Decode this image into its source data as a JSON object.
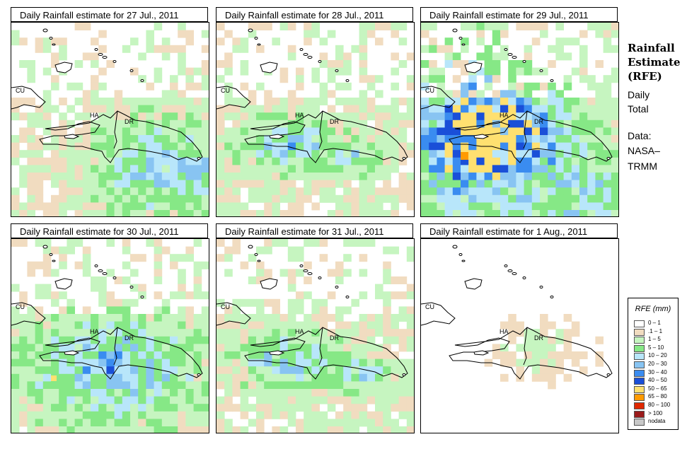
{
  "panels": [
    {
      "title": "Daily Rainfall estimate for  27 Jul., 2011",
      "intensity": 1
    },
    {
      "title": "Daily Rainfall estimate for  28 Jul., 2011",
      "intensity": 2
    },
    {
      "title": "Daily Rainfall estimate for  29 Jul., 2011",
      "intensity": 3
    },
    {
      "title": "Daily Rainfall estimate for  30 Jul., 2011",
      "intensity": 4
    },
    {
      "title": "Daily Rainfall estimate for  31 Jul., 2011",
      "intensity": 2
    },
    {
      "title": "Daily Rainfall estimate for  1 Aug., 2011",
      "intensity": 0
    }
  ],
  "map_labels": {
    "cu": "CU",
    "ha": "HA",
    "dr": "DR"
  },
  "sidebar": {
    "title_line1": "Rainfall",
    "title_line2": "Estimate",
    "title_line3": "(RFE)",
    "line_daily": "Daily",
    "line_total": "Total",
    "line_data": "Data:",
    "line_nasa": "NASA–",
    "line_trmm": "TRMM"
  },
  "legend": {
    "title": "RFE (mm)",
    "items": [
      {
        "label": "0 – 1",
        "color": "#ffffff"
      },
      {
        "label": ".1 – 1",
        "color": "#f1dcc0"
      },
      {
        "label": "1 – 5",
        "color": "#c6f5c0"
      },
      {
        "label": "5 – 10",
        "color": "#86e886"
      },
      {
        "label": "10 – 20",
        "color": "#b8e6fa"
      },
      {
        "label": "20 – 30",
        "color": "#88c4f2"
      },
      {
        "label": "30 – 40",
        "color": "#3a8cf0"
      },
      {
        "label": "40 – 50",
        "color": "#1a4fd8"
      },
      {
        "label": "50 – 65",
        "color": "#ffe070"
      },
      {
        "label": "65 – 80",
        "color": "#ff9a00"
      },
      {
        "label": "80 – 100",
        "color": "#e02800"
      },
      {
        "label": "> 100",
        "color": "#9a1a1a"
      },
      {
        "label": "nodata",
        "color": "#c8c8c8"
      }
    ]
  }
}
